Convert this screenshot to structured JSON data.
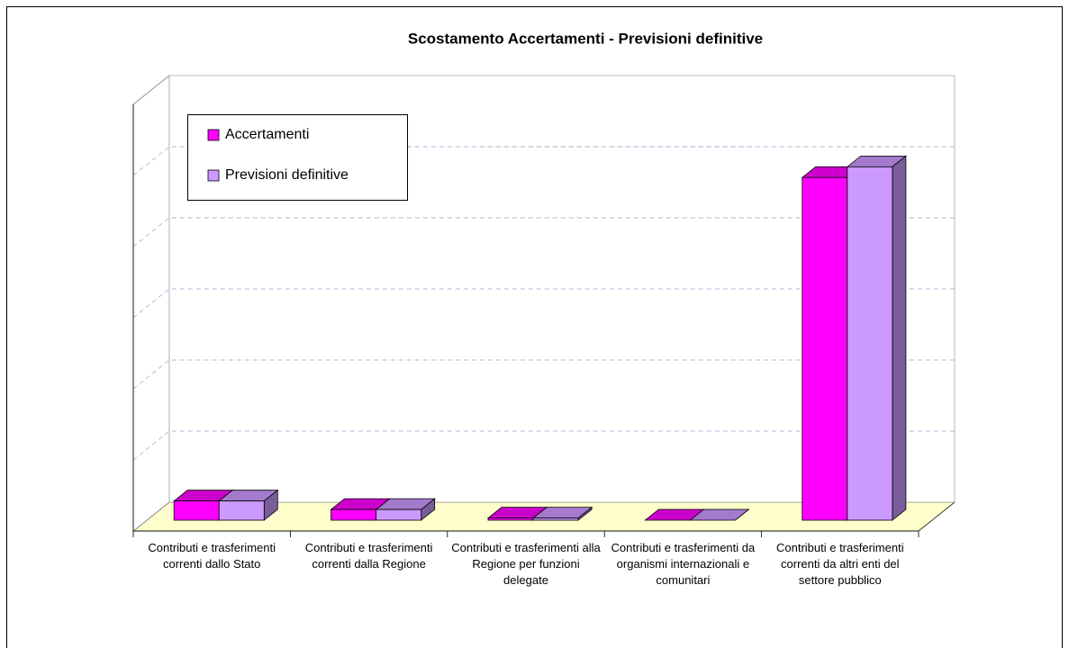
{
  "chart_data": {
    "type": "bar3d",
    "title": "Scostamento Accertamenti - Previsioni definitive",
    "categories": [
      "Contributi e trasferimenti correnti dallo Stato",
      "Contributi e trasferimenti correnti dalla Regione",
      "Contributi e trasferimenti alla Regione per funzioni delegate",
      "Contributi e trasferimenti da organismi internazionali e comunitari",
      "Contributi e trasferimenti correnti da altri enti del settore pubblico"
    ],
    "series": [
      {
        "name": "Accertamenti",
        "color": "#ff00ff",
        "values": [
          0.27,
          0.15,
          0.03,
          0,
          4.82
        ]
      },
      {
        "name": "Previsioni definitive",
        "color": "#cc99ff",
        "values": [
          0.27,
          0.15,
          0.03,
          0,
          4.97
        ]
      }
    ],
    "ylim": [
      0,
      6
    ],
    "yticks": [
      0,
      1,
      2,
      3,
      4,
      5
    ],
    "grid": true,
    "legend": "upper left"
  }
}
